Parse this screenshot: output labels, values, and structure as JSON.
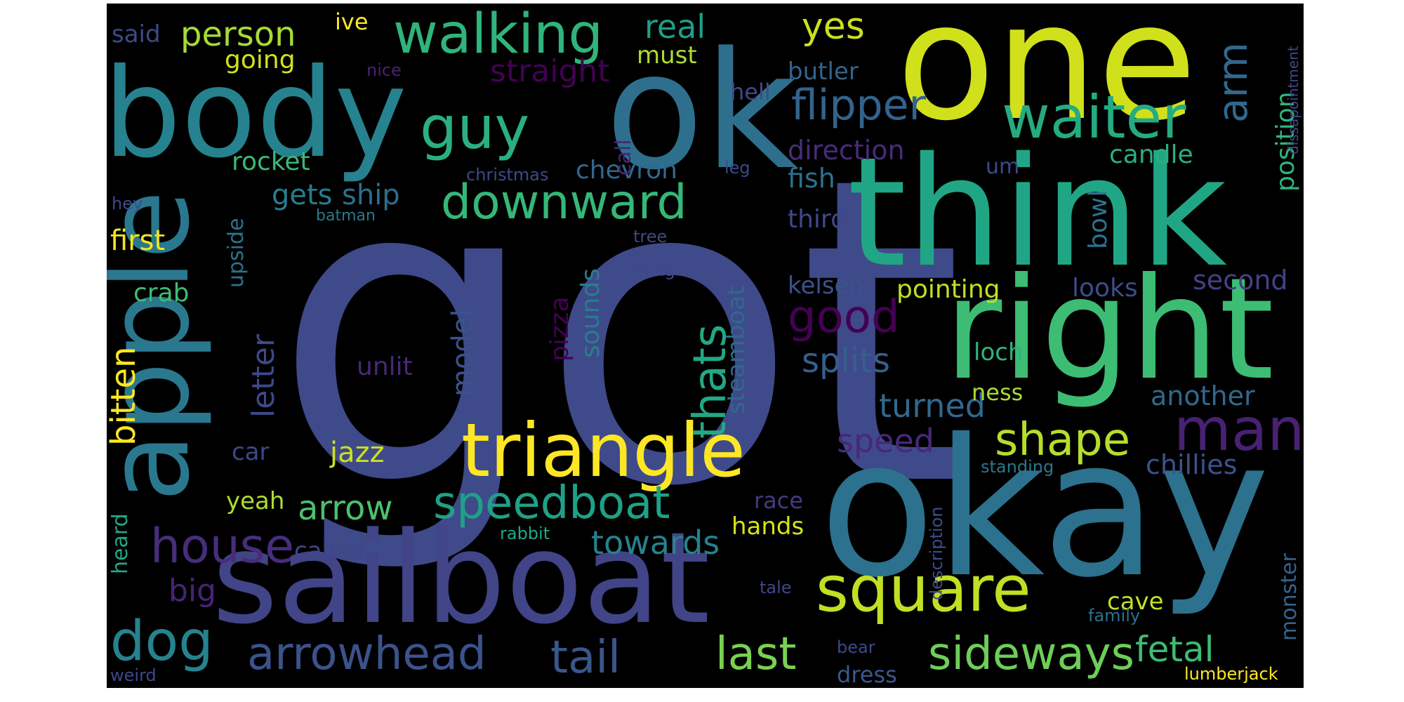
{
  "words": [
    {
      "text": "got",
      "color": "#3f4a8a"
    },
    {
      "text": "okay",
      "color": "#2c718e"
    },
    {
      "text": "think",
      "color": "#21a685"
    },
    {
      "text": "sailboat",
      "color": "#414487"
    },
    {
      "text": "one",
      "color": "#d0e11c"
    },
    {
      "text": "ok",
      "color": "#2e6f8e"
    },
    {
      "text": "apple",
      "color": "#2a788e"
    },
    {
      "text": "right",
      "color": "#3dbc74"
    },
    {
      "text": "body",
      "color": "#26828e"
    },
    {
      "text": "triangle",
      "color": "#fde725"
    },
    {
      "text": "square",
      "color": "#c2df23"
    },
    {
      "text": "walking",
      "color": "#2fb47c"
    },
    {
      "text": "waiter",
      "color": "#25ab82"
    },
    {
      "text": "guy",
      "color": "#2ab07f"
    },
    {
      "text": "downward",
      "color": "#35b779"
    },
    {
      "text": "speedboat",
      "color": "#1fa187"
    },
    {
      "text": "man",
      "color": "#482173"
    },
    {
      "text": "house",
      "color": "#472d7b"
    },
    {
      "text": "dog",
      "color": "#26828e"
    },
    {
      "text": "arrowhead",
      "color": "#3b528b"
    },
    {
      "text": "tail",
      "color": "#39568c"
    },
    {
      "text": "last",
      "color": "#7ad151"
    },
    {
      "text": "sideways",
      "color": "#6ece58"
    },
    {
      "text": "shape",
      "color": "#b5de2b"
    },
    {
      "text": "flipper",
      "color": "#33638d"
    },
    {
      "text": "thats",
      "color": "#22a884"
    },
    {
      "text": "good",
      "color": "#440154"
    },
    {
      "text": "arm",
      "color": "#31688e"
    },
    {
      "text": "position",
      "color": "#2fb47c"
    },
    {
      "text": "splits",
      "color": "#355f8d"
    },
    {
      "text": "turned",
      "color": "#31688e"
    },
    {
      "text": "person",
      "color": "#a5db36"
    },
    {
      "text": "yes",
      "color": "#c8e020"
    },
    {
      "text": "real",
      "color": "#1f9e89"
    },
    {
      "text": "straight",
      "color": "#440154"
    },
    {
      "text": "arrow",
      "color": "#4ac16d"
    },
    {
      "text": "towards",
      "color": "#26828e"
    },
    {
      "text": "speed",
      "color": "#482878"
    },
    {
      "text": "fetal",
      "color": "#3dbc74"
    },
    {
      "text": "bitten",
      "color": "#fde725"
    },
    {
      "text": "letter",
      "color": "#3e4989"
    },
    {
      "text": "model",
      "color": "#3b528b"
    },
    {
      "text": "big",
      "color": "#482475"
    },
    {
      "text": "chillies",
      "color": "#3b528b"
    },
    {
      "text": "another",
      "color": "#31688e"
    },
    {
      "text": "second",
      "color": "#424186"
    },
    {
      "text": "looks",
      "color": "#3e4c8a"
    },
    {
      "text": "pointing",
      "color": "#c2df23"
    },
    {
      "text": "kelsen",
      "color": "#3b528b"
    },
    {
      "text": "direction",
      "color": "#472c7a"
    },
    {
      "text": "fish",
      "color": "#2d708e"
    },
    {
      "text": "candle",
      "color": "#29af7f"
    },
    {
      "text": "butler",
      "color": "#33638d"
    },
    {
      "text": "gets",
      "color": "#287c8e"
    },
    {
      "text": "ship",
      "color": "#2e6e8e"
    },
    {
      "text": "chevron",
      "color": "#31688e"
    },
    {
      "text": "rocket",
      "color": "#3aba76"
    },
    {
      "text": "said",
      "color": "#3e4989"
    },
    {
      "text": "going",
      "color": "#d2e21b"
    },
    {
      "text": "ive",
      "color": "#fde725"
    },
    {
      "text": "must",
      "color": "#addc30"
    },
    {
      "text": "hell",
      "color": "#3e4989"
    },
    {
      "text": "first",
      "color": "#f1e51d"
    },
    {
      "text": "upside",
      "color": "#2c728e"
    },
    {
      "text": "crab",
      "color": "#3dbc74"
    },
    {
      "text": "unlit",
      "color": "#482878"
    },
    {
      "text": "pizza",
      "color": "#440154"
    },
    {
      "text": "sounds",
      "color": "#287d8e"
    },
    {
      "text": "steamboat",
      "color": "#31688e"
    },
    {
      "text": "third",
      "color": "#3e4989"
    },
    {
      "text": "bowl",
      "color": "#2c728e"
    },
    {
      "text": "loch",
      "color": "#2fb47c"
    },
    {
      "text": "ness",
      "color": "#a8db34"
    },
    {
      "text": "car",
      "color": "#3e4989"
    },
    {
      "text": "jazz",
      "color": "#cae11f"
    },
    {
      "text": "yeah",
      "color": "#addc30"
    },
    {
      "text": "race",
      "color": "#443983"
    },
    {
      "text": "hands",
      "color": "#d5e21a"
    },
    {
      "text": "called",
      "color": "#3f4788"
    },
    {
      "text": "heard",
      "color": "#22a884"
    },
    {
      "text": "cave",
      "color": "#c5e021"
    },
    {
      "text": "monster",
      "color": "#33638d"
    },
    {
      "text": "dress",
      "color": "#38598c"
    },
    {
      "text": "call",
      "color": "#482677"
    },
    {
      "text": "um",
      "color": "#3e4989"
    },
    {
      "text": "christmas",
      "color": "#3e4989"
    },
    {
      "text": "leg",
      "color": "#3e4989"
    },
    {
      "text": "nice",
      "color": "#482173"
    },
    {
      "text": "hey",
      "color": "#3e4989"
    },
    {
      "text": "batman",
      "color": "#29798e"
    },
    {
      "text": "tree",
      "color": "#3f4788"
    },
    {
      "text": "thing",
      "color": "#3e4989"
    },
    {
      "text": "standing",
      "color": "#2a788e"
    },
    {
      "text": "description",
      "color": "#3e4c8a"
    },
    {
      "text": "rabbit",
      "color": "#22a884"
    },
    {
      "text": "tale",
      "color": "#3f4788"
    },
    {
      "text": "family",
      "color": "#2c728e"
    },
    {
      "text": "bear",
      "color": "#3e4989"
    },
    {
      "text": "weird",
      "color": "#3f4788"
    },
    {
      "text": "lumberjack",
      "color": "#fde725"
    },
    {
      "text": "dissapointment",
      "color": "#3e4989"
    }
  ]
}
